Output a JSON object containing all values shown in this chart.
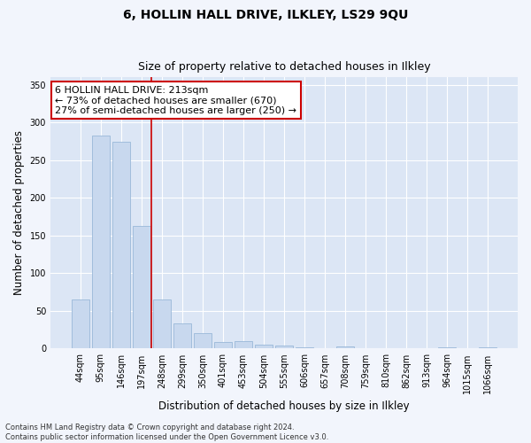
{
  "title": "6, HOLLIN HALL DRIVE, ILKLEY, LS29 9QU",
  "subtitle": "Size of property relative to detached houses in Ilkley",
  "xlabel": "Distribution of detached houses by size in Ilkley",
  "ylabel": "Number of detached properties",
  "footer": "Contains HM Land Registry data © Crown copyright and database right 2024.\nContains public sector information licensed under the Open Government Licence v3.0.",
  "categories": [
    "44sqm",
    "95sqm",
    "146sqm",
    "197sqm",
    "248sqm",
    "299sqm",
    "350sqm",
    "401sqm",
    "453sqm",
    "504sqm",
    "555sqm",
    "606sqm",
    "657sqm",
    "708sqm",
    "759sqm",
    "810sqm",
    "862sqm",
    "913sqm",
    "964sqm",
    "1015sqm",
    "1066sqm"
  ],
  "values": [
    65,
    283,
    275,
    163,
    65,
    33,
    20,
    9,
    10,
    5,
    4,
    2,
    0,
    3,
    0,
    0,
    1,
    0,
    2,
    0,
    2
  ],
  "bar_color": "#c8d8ee",
  "bar_edgecolor": "#9ab8d8",
  "vline_x": 3.5,
  "vline_color": "#cc0000",
  "annotation_text": "6 HOLLIN HALL DRIVE: 213sqm\n← 73% of detached houses are smaller (670)\n27% of semi-detached houses are larger (250) →",
  "annotation_box_facecolor": "#ffffff",
  "annotation_box_edgecolor": "#cc0000",
  "ylim": [
    0,
    360
  ],
  "yticks": [
    0,
    50,
    100,
    150,
    200,
    250,
    300,
    350
  ],
  "plot_bg_color": "#dce6f5",
  "fig_bg_color": "#f2f5fc",
  "grid_color": "#ffffff",
  "title_fontsize": 10,
  "subtitle_fontsize": 9,
  "axis_label_fontsize": 8.5,
  "tick_fontsize": 7,
  "annotation_fontsize": 8,
  "footer_fontsize": 6
}
